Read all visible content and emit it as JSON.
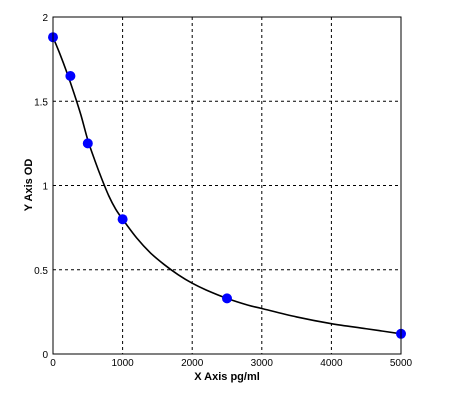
{
  "chart_data": {
    "type": "scatter",
    "title": "",
    "xlabel": "X  Axis pg/ml",
    "ylabel": "Y  Axis OD",
    "xlim": [
      0,
      5000
    ],
    "ylim": [
      0,
      2
    ],
    "x_ticks": [
      0,
      1000,
      2000,
      3000,
      4000,
      5000
    ],
    "y_ticks": [
      0,
      0.5,
      1,
      1.5,
      2
    ],
    "x_tick_labels": [
      "0",
      "1000",
      "2000",
      "3000",
      "4000",
      "5000"
    ],
    "y_tick_labels": [
      "0",
      "0.5",
      "1",
      "1.5",
      "2"
    ],
    "grid": true,
    "series": [
      {
        "x": [
          0,
          250,
          500,
          1000,
          2500,
          5000
        ],
        "y": [
          1.88,
          1.65,
          1.25,
          0.8,
          0.33,
          0.12
        ],
        "color": "#0000ff"
      }
    ],
    "fit_curve": {
      "x": [
        0,
        100,
        200,
        300,
        400,
        500,
        600,
        700,
        800,
        900,
        1000,
        1200,
        1400,
        1600,
        1800,
        2000,
        2200,
        2500,
        2800,
        3000,
        3500,
        4000,
        4500,
        5000
      ],
      "y": [
        1.88,
        1.78,
        1.67,
        1.55,
        1.42,
        1.27,
        1.15,
        1.04,
        0.94,
        0.86,
        0.8,
        0.69,
        0.6,
        0.53,
        0.47,
        0.42,
        0.38,
        0.33,
        0.29,
        0.27,
        0.22,
        0.18,
        0.15,
        0.12
      ],
      "color": "#000000"
    }
  }
}
